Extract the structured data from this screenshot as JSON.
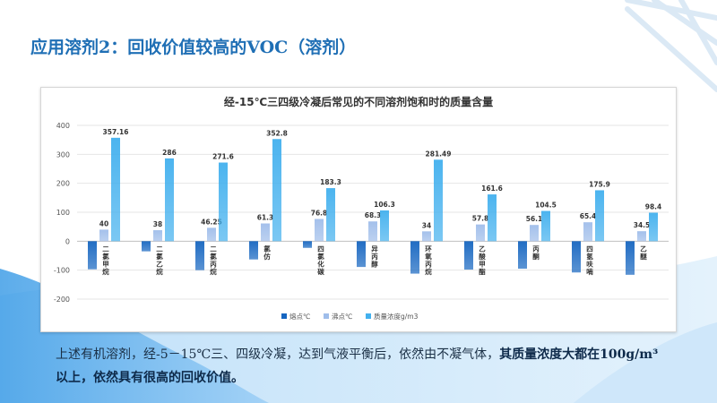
{
  "slide": {
    "title": "应用溶剂2：回收价值较高的VOC（溶剂）",
    "body_plain": "上述有机溶剂，经-5－15℃三、四级冷凝，达到气液平衡后，依然由不凝气体，",
    "body_bold": "其质量浓度大都在100g/m³以上，依然具有很高的回收价值。"
  },
  "colors": {
    "title": "#1f6fb5",
    "series": [
      "#1565c0",
      "#9fbdea",
      "#42b0ee"
    ],
    "grid": "#e6e6e6",
    "axis_text": "#555555",
    "label_text": "#333333",
    "wave_dark": "#3a8fdc",
    "wave_light": "#aad2f5"
  },
  "chart_data": {
    "type": "bar",
    "title": "经-15℃三四级冷凝后常见的不同溶剂饱和时的质量含量",
    "categories": [
      "二氯甲烷",
      "二氯乙烷",
      "二氯丙烷",
      "氯仿",
      "四氯化碳",
      "异丙醇",
      "环氧丙烷",
      "乙酸甲酯",
      "丙酮",
      "四氢呋喃",
      "乙醚"
    ],
    "series": [
      {
        "name": "熔点℃",
        "values": [
          -97,
          -35,
          -100,
          -63,
          -23,
          -89,
          -112,
          -98,
          -95,
          -108,
          -116
        ]
      },
      {
        "name": "沸点℃",
        "values": [
          40,
          38,
          46.25,
          61.3,
          76.8,
          68.3,
          34,
          57.8,
          56.1,
          65.4,
          34.5
        ]
      },
      {
        "name": "质量浓度g/m3",
        "values": [
          357.16,
          286,
          271.6,
          352.8,
          183.3,
          106.3,
          281.49,
          161.6,
          104.5,
          175.9,
          98.4
        ]
      }
    ],
    "data_labels": [
      [
        "40",
        "38",
        "46.25",
        "61.3",
        "76.8",
        "68.3",
        "34",
        "57.8",
        "56.1",
        "65.4",
        "34.5"
      ],
      [
        "357.16",
        "286",
        "271.6",
        "352.8",
        "183.3",
        "106.3",
        "281.49",
        "161.6",
        "104.5",
        "175.9",
        "98.4"
      ]
    ],
    "ylim": [
      -200,
      400
    ],
    "yticks": [
      "400",
      "300",
      "200",
      "100",
      "0",
      "-100",
      "-200"
    ],
    "grid": true,
    "legend_position": "bottom"
  }
}
